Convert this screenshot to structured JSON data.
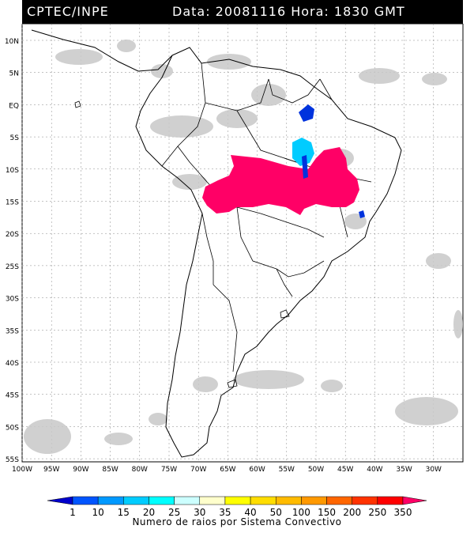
{
  "header": {
    "source": "CPTEC/INPE",
    "datetime": "Data: 20081116 Hora: 1830 GMT"
  },
  "map": {
    "lat_labels": [
      "10N",
      "5N",
      "EQ",
      "5S",
      "10S",
      "15S",
      "20S",
      "25S",
      "30S",
      "35S",
      "40S",
      "45S",
      "50S",
      "55S"
    ],
    "lon_labels": [
      "100W",
      "95W",
      "90W",
      "85W",
      "80W",
      "75W",
      "70W",
      "65W",
      "60W",
      "55W",
      "50W",
      "45W",
      "40W",
      "35W",
      "30W"
    ],
    "colors": {
      "coast": "#000000",
      "cloud": "#c8c8c8",
      "grid": "#888888",
      "max_class": "#ff0066",
      "mid_class": "#00ccff",
      "low_class": "#0033dd"
    }
  },
  "legend": {
    "ticks": [
      "1",
      "10",
      "15",
      "20",
      "25",
      "30",
      "35",
      "40",
      "50",
      "100",
      "150",
      "200",
      "250",
      "350"
    ],
    "colors": [
      "#0000cc",
      "#0055ff",
      "#0099ff",
      "#00ccff",
      "#00ffff",
      "#ccffff",
      "#ffffcc",
      "#ffff00",
      "#ffdd00",
      "#ffbb00",
      "#ff9900",
      "#ff6600",
      "#ff3300",
      "#ff0000",
      "#ff0066"
    ],
    "title": "Numero de raios por Sistema Convectivo"
  }
}
